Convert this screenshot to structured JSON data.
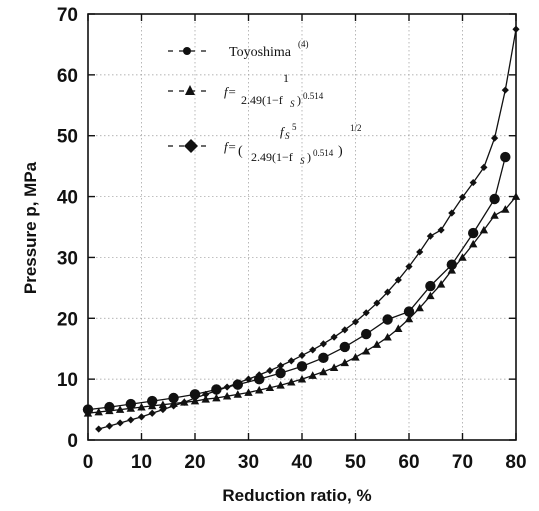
{
  "chart_data": {
    "type": "line",
    "title": "",
    "xlabel": "Reduction ratio, %",
    "ylabel": "Pressure p, MPa",
    "xlim": [
      0,
      80
    ],
    "ylim": [
      0,
      70
    ],
    "x_ticks": [
      0,
      10,
      20,
      30,
      40,
      50,
      60,
      70,
      80
    ],
    "y_ticks": [
      0,
      10,
      20,
      30,
      40,
      50,
      60,
      70
    ],
    "grid": true,
    "legend_position": "top-left",
    "legend": [
      {
        "text": "Toyoshima",
        "superscript": "(4)"
      },
      {
        "text": "f= 1 / 2.49(1−fs)^0.514"
      },
      {
        "text": "f=( fs^5 / 2.49(1−fs)^0.514 )^1/2"
      }
    ],
    "legend_math": {
      "f_eq": "f=",
      "one": "1",
      "denom": "2.49(1−f",
      "sub_s": "S",
      "close": ")",
      "exp": "0.514",
      "numer_fs": "f",
      "numer_exp": "5",
      "outer_exp": "1/2",
      "paren_open": "(",
      "paren_close": ")"
    },
    "series": [
      {
        "name": "Toyoshima",
        "marker": "circle",
        "x": [
          0,
          4,
          8,
          12,
          16,
          20,
          24,
          28,
          32,
          36,
          40,
          44,
          48,
          52,
          56,
          60,
          64,
          68,
          72,
          76,
          78
        ],
        "y": [
          5,
          5.4,
          5.9,
          6.4,
          6.9,
          7.5,
          8.3,
          9.1,
          10,
          11,
          12.1,
          13.5,
          15.3,
          17.4,
          19.8,
          21.1,
          25.3,
          28.8,
          34,
          39.6,
          46.5
        ]
      },
      {
        "name": "f= 1 / 2.49(1−fs)^0.514",
        "marker": "triangle",
        "x": [
          0,
          2,
          4,
          6,
          8,
          10,
          12,
          14,
          16,
          18,
          20,
          22,
          24,
          26,
          28,
          30,
          32,
          34,
          36,
          38,
          40,
          42,
          44,
          46,
          48,
          50,
          52,
          54,
          56,
          58,
          60,
          62,
          64,
          66,
          68,
          70,
          72,
          74,
          76,
          78,
          80
        ],
        "y": [
          4.4,
          4.6,
          4.8,
          5.0,
          5.2,
          5.4,
          5.6,
          5.8,
          6.0,
          6.2,
          6.4,
          6.7,
          6.9,
          7.2,
          7.5,
          7.8,
          8.2,
          8.6,
          9.0,
          9.5,
          10.0,
          10.6,
          11.2,
          11.9,
          12.7,
          13.6,
          14.6,
          15.7,
          16.9,
          18.3,
          19.9,
          21.7,
          23.7,
          25.6,
          27.9,
          30.0,
          32.2,
          34.5,
          36.9,
          37.9,
          40.0
        ]
      },
      {
        "name": "f=( fs^5 / 2.49(1−fs)^0.514 )^1/2",
        "marker": "diamond",
        "x": [
          2,
          4,
          6,
          8,
          10,
          12,
          14,
          16,
          18,
          20,
          22,
          24,
          26,
          28,
          30,
          32,
          34,
          36,
          38,
          40,
          42,
          44,
          46,
          48,
          50,
          52,
          54,
          56,
          58,
          60,
          62,
          64,
          66,
          68,
          70,
          72,
          74,
          76,
          78,
          80
        ],
        "y": [
          1.8,
          2.3,
          2.8,
          3.3,
          3.8,
          4.4,
          5.0,
          5.6,
          6.2,
          6.9,
          7.5,
          8.1,
          8.7,
          9.4,
          10.0,
          10.7,
          11.4,
          12.2,
          13.0,
          13.9,
          14.8,
          15.8,
          16.9,
          18.1,
          19.4,
          20.9,
          22.5,
          24.3,
          26.3,
          28.5,
          30.9,
          33.5,
          34.5,
          37.3,
          39.9,
          42.3,
          44.8,
          49.6,
          57.5,
          67.5
        ]
      }
    ]
  }
}
